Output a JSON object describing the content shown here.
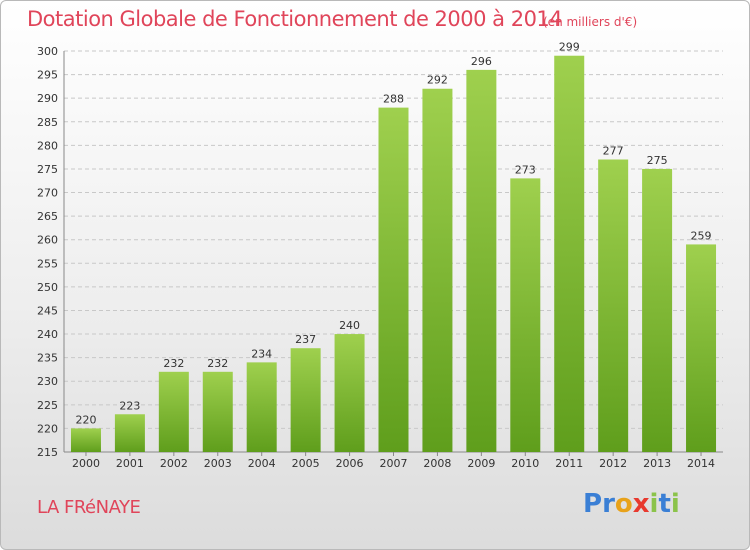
{
  "title": "Dotation Globale de Fonctionnement de 2000 à 2014",
  "subtitle": "(en milliers d'€)",
  "commune": "LA FRéNAYE",
  "logo": {
    "letters": [
      "P",
      "r",
      "o",
      "x",
      "i",
      "t",
      "i"
    ],
    "colors": [
      "#3a7fd5",
      "#3a7fd5",
      "#e8a21a",
      "#e8392e",
      "#8bc34a",
      "#3a7fd5",
      "#8bc34a"
    ]
  },
  "colors": {
    "bar_top": "#9fd04e",
    "bar_bottom": "#5f9e1c",
    "text_accent": "#e0455a"
  },
  "chart_data": {
    "type": "bar",
    "categories": [
      "2000",
      "2001",
      "2002",
      "2003",
      "2004",
      "2005",
      "2006",
      "2007",
      "2008",
      "2009",
      "2010",
      "2011",
      "2012",
      "2013",
      "2014"
    ],
    "values": [
      220,
      223,
      232,
      232,
      234,
      237,
      240,
      288,
      292,
      296,
      273,
      299,
      277,
      275,
      259
    ],
    "title": "Dotation Globale de Fonctionnement de 2000 à 2014",
    "xlabel": "",
    "ylabel": "",
    "ylim": [
      215,
      300
    ],
    "yticks": [
      215,
      220,
      225,
      230,
      235,
      240,
      245,
      250,
      255,
      260,
      265,
      270,
      275,
      280,
      285,
      290,
      295,
      300
    ],
    "grid": true,
    "legend": "none"
  }
}
